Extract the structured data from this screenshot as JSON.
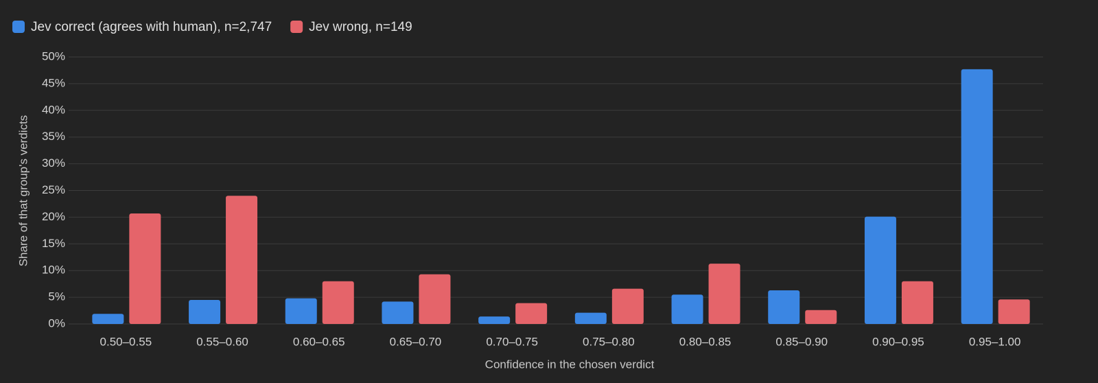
{
  "chart_data": {
    "type": "bar",
    "xlabel": "Confidence in the chosen verdict",
    "ylabel": "Share of that group's verdicts",
    "categories": [
      "0.50–0.55",
      "0.55–0.60",
      "0.60–0.65",
      "0.65–0.70",
      "0.70–0.75",
      "0.75–0.80",
      "0.80–0.85",
      "0.85–0.90",
      "0.90–0.95",
      "0.95–1.00"
    ],
    "series": [
      {
        "name": "Jev correct (agrees with human), n=2,747",
        "color": "#3b86e3",
        "values": [
          1.9,
          4.5,
          4.8,
          4.2,
          1.4,
          2.1,
          5.5,
          6.3,
          20.1,
          47.7
        ]
      },
      {
        "name": "Jev wrong, n=149",
        "color": "#e5646a",
        "values": [
          20.7,
          24.0,
          8.0,
          9.3,
          3.9,
          6.6,
          11.3,
          2.6,
          8.0,
          4.6
        ]
      }
    ],
    "ylim": [
      0,
      50
    ],
    "yticks": [
      {
        "value": 0,
        "label": "0%"
      },
      {
        "value": 5,
        "label": "5%"
      },
      {
        "value": 10,
        "label": "10%"
      },
      {
        "value": 15,
        "label": "15%"
      },
      {
        "value": 20,
        "label": "20%"
      },
      {
        "value": 25,
        "label": "25%"
      },
      {
        "value": 30,
        "label": "30%"
      },
      {
        "value": 35,
        "label": "35%"
      },
      {
        "value": 40,
        "label": "40%"
      },
      {
        "value": 45,
        "label": "45%"
      },
      {
        "value": 50,
        "label": "50%"
      }
    ],
    "grid": true,
    "legend": "top-left"
  }
}
